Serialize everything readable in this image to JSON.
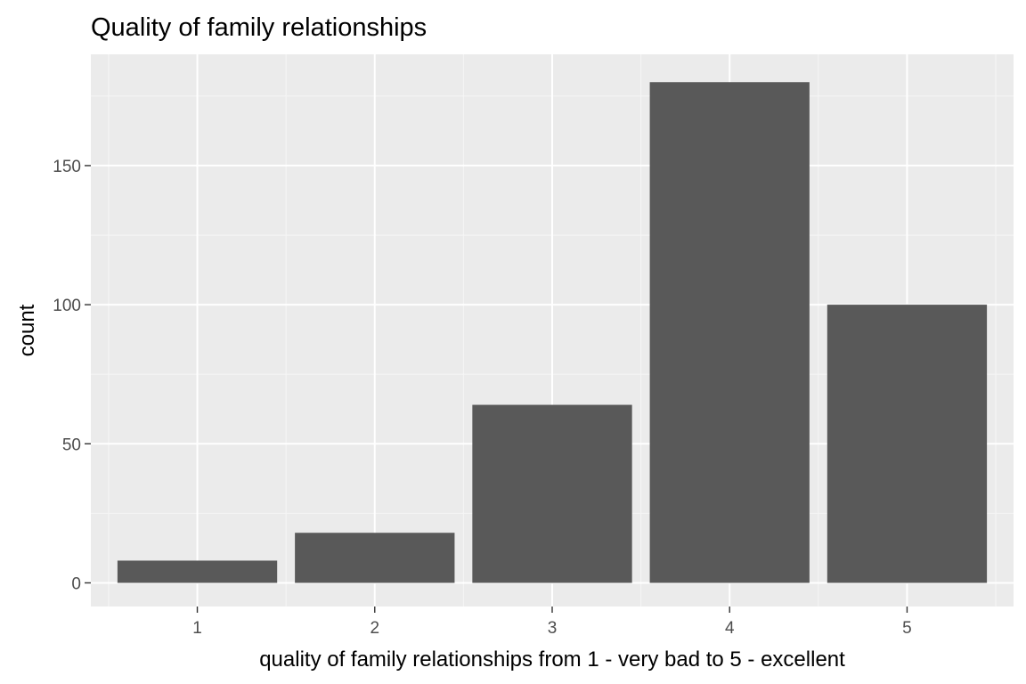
{
  "chart_data": {
    "type": "bar",
    "title": "Quality of family relationships",
    "xlabel": "quality of family relationships from 1 - very bad to 5 - excellent",
    "ylabel": "count",
    "categories": [
      "1",
      "2",
      "3",
      "4",
      "5"
    ],
    "values": [
      8,
      18,
      64,
      180,
      100
    ],
    "ylim": [
      -8.5,
      190
    ],
    "yticks": [
      0,
      50,
      100,
      150
    ],
    "ytick_labels": [
      "0",
      "50",
      "100",
      "150"
    ],
    "grid": true,
    "legend": "none",
    "colors": {
      "bar": "#595959",
      "panel": "#ebebeb",
      "grid_major": "#ffffff",
      "grid_minor": "#f5f5f5",
      "tick_text": "#4d4d4d",
      "tick_mark": "#333333"
    }
  }
}
